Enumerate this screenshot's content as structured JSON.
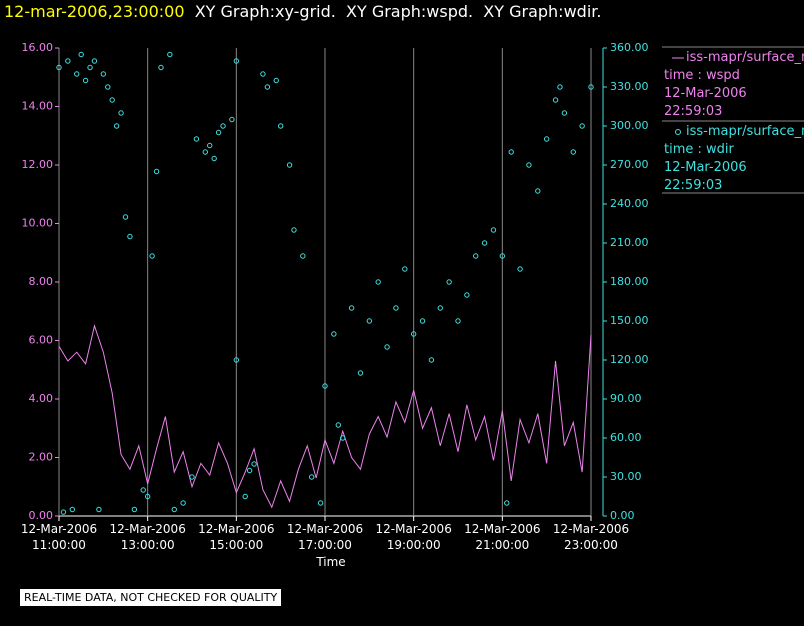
{
  "chart_data": {
    "type": "line-scatter",
    "timestamp": "12-mar-2006,23:00:00",
    "title": "XY Graph:xy-grid.  XY Graph:wspd.  XY Graph:wdir.",
    "x_label": "Time",
    "note": "REAL-TIME DATA, NOT CHECKED FOR QUALITY",
    "xlim": [
      11,
      23
    ],
    "xticks": [
      {
        "value": 11,
        "label": "12-Mar-2006 11:00:00"
      },
      {
        "value": 13,
        "label": "12-Mar-2006 13:00:00"
      },
      {
        "value": 15,
        "label": "12-Mar-2006 15:00:00"
      },
      {
        "value": 17,
        "label": "12-Mar-2006 17:00:00"
      },
      {
        "value": 19,
        "label": "12-Mar-2006 19:00:00"
      },
      {
        "value": 21,
        "label": "12-Mar-2006 21:00:00"
      },
      {
        "value": 23,
        "label": "12-Mar-2006 23:00:00"
      }
    ],
    "ylim": [
      0,
      16
    ],
    "yticks": [
      {
        "value": 0,
        "label": "0.00"
      },
      {
        "value": 2,
        "label": "2.00"
      },
      {
        "value": 4,
        "label": "4.00"
      },
      {
        "value": 6,
        "label": "6.00"
      },
      {
        "value": 8,
        "label": "8.00"
      },
      {
        "value": 10,
        "label": "10.00"
      },
      {
        "value": 12,
        "label": "12.00"
      },
      {
        "value": 14,
        "label": "14.00"
      },
      {
        "value": 16,
        "label": "16.00"
      }
    ],
    "y2lim": [
      0,
      360
    ],
    "y2ticks": [
      {
        "value": 0,
        "label": "0.00"
      },
      {
        "value": 30,
        "label": "30.00"
      },
      {
        "value": 60,
        "label": "60.00"
      },
      {
        "value": 90,
        "label": "90.00"
      },
      {
        "value": 120,
        "label": "120.00"
      },
      {
        "value": 150,
        "label": "150.00"
      },
      {
        "value": 180,
        "label": "180.00"
      },
      {
        "value": 210,
        "label": "210.00"
      },
      {
        "value": 240,
        "label": "240.00"
      },
      {
        "value": 270,
        "label": "270.00"
      },
      {
        "value": 300,
        "label": "300.00"
      },
      {
        "value": 330,
        "label": "330.00"
      },
      {
        "value": 360,
        "label": "360.00"
      }
    ],
    "grid": "x",
    "series": [
      {
        "name": "iss-mapr/surface_m",
        "legend_detail": [
          "time : wspd",
          "12-Mar-2006",
          "22:59:03"
        ],
        "color": "#ee82ee",
        "kind": "line",
        "x": [
          11.0,
          11.2,
          11.4,
          11.6,
          11.8,
          12.0,
          12.2,
          12.4,
          12.6,
          12.8,
          13.0,
          13.2,
          13.4,
          13.6,
          13.8,
          14.0,
          14.2,
          14.4,
          14.6,
          14.8,
          15.0,
          15.2,
          15.4,
          15.6,
          15.8,
          16.0,
          16.2,
          16.4,
          16.6,
          16.8,
          17.0,
          17.2,
          17.4,
          17.6,
          17.8,
          18.0,
          18.2,
          18.4,
          18.6,
          18.8,
          19.0,
          19.2,
          19.4,
          19.6,
          19.8,
          20.0,
          20.2,
          20.4,
          20.6,
          20.8,
          21.0,
          21.2,
          21.4,
          21.6,
          21.8,
          22.0,
          22.2,
          22.4,
          22.6,
          22.8,
          23.0
        ],
        "values": [
          5.8,
          5.3,
          5.6,
          5.2,
          6.5,
          5.6,
          4.2,
          2.1,
          1.6,
          2.4,
          1.1,
          2.3,
          3.4,
          1.5,
          2.2,
          1.0,
          1.8,
          1.4,
          2.5,
          1.8,
          0.8,
          1.5,
          2.3,
          0.9,
          0.3,
          1.2,
          0.5,
          1.6,
          2.4,
          1.3,
          2.6,
          1.8,
          2.9,
          2.0,
          1.6,
          2.8,
          3.4,
          2.7,
          3.9,
          3.2,
          4.3,
          3.0,
          3.7,
          2.4,
          3.5,
          2.2,
          3.8,
          2.6,
          3.4,
          1.9,
          3.6,
          1.2,
          3.3,
          2.5,
          3.5,
          1.8,
          5.3,
          2.4,
          3.2,
          1.5,
          6.2
        ]
      },
      {
        "name": "iss-mapr/surface_m",
        "legend_detail": [
          "time : wdir",
          "12-Mar-2006",
          "22:59:03"
        ],
        "color": "#40e0e0",
        "kind": "scatter",
        "axis": "y2",
        "x": [
          11.0,
          11.1,
          11.2,
          11.3,
          11.4,
          11.5,
          11.6,
          11.7,
          11.8,
          11.9,
          12.0,
          12.1,
          12.2,
          12.3,
          12.4,
          12.5,
          12.6,
          12.7,
          12.9,
          13.0,
          13.1,
          13.2,
          13.3,
          13.5,
          13.6,
          13.8,
          14.0,
          14.1,
          14.3,
          14.4,
          14.5,
          14.6,
          14.7,
          14.9,
          15.0,
          15.0,
          15.2,
          15.3,
          15.4,
          15.6,
          15.7,
          15.9,
          16.0,
          16.2,
          16.3,
          16.5,
          16.7,
          16.9,
          17.0,
          17.2,
          17.3,
          17.4,
          17.6,
          17.8,
          18.0,
          18.2,
          18.4,
          18.6,
          18.8,
          19.0,
          19.2,
          19.4,
          19.6,
          19.8,
          20.0,
          20.2,
          20.4,
          20.6,
          20.8,
          21.0,
          21.1,
          21.2,
          21.4,
          21.6,
          21.8,
          22.0,
          22.2,
          22.3,
          22.4,
          22.6,
          22.8,
          23.0
        ],
        "values": [
          345,
          3,
          350,
          5,
          340,
          355,
          335,
          345,
          350,
          5,
          340,
          330,
          320,
          300,
          310,
          230,
          215,
          5,
          20,
          15,
          200,
          265,
          345,
          355,
          5,
          10,
          30,
          290,
          280,
          285,
          275,
          295,
          300,
          305,
          120,
          350,
          15,
          35,
          40,
          340,
          330,
          335,
          300,
          270,
          220,
          200,
          30,
          10,
          100,
          140,
          70,
          60,
          160,
          110,
          150,
          180,
          130,
          160,
          190,
          140,
          150,
          120,
          160,
          180,
          150,
          170,
          200,
          210,
          220,
          200,
          10,
          280,
          190,
          270,
          250,
          290,
          320,
          330,
          310,
          280,
          300,
          330
        ]
      }
    ]
  }
}
